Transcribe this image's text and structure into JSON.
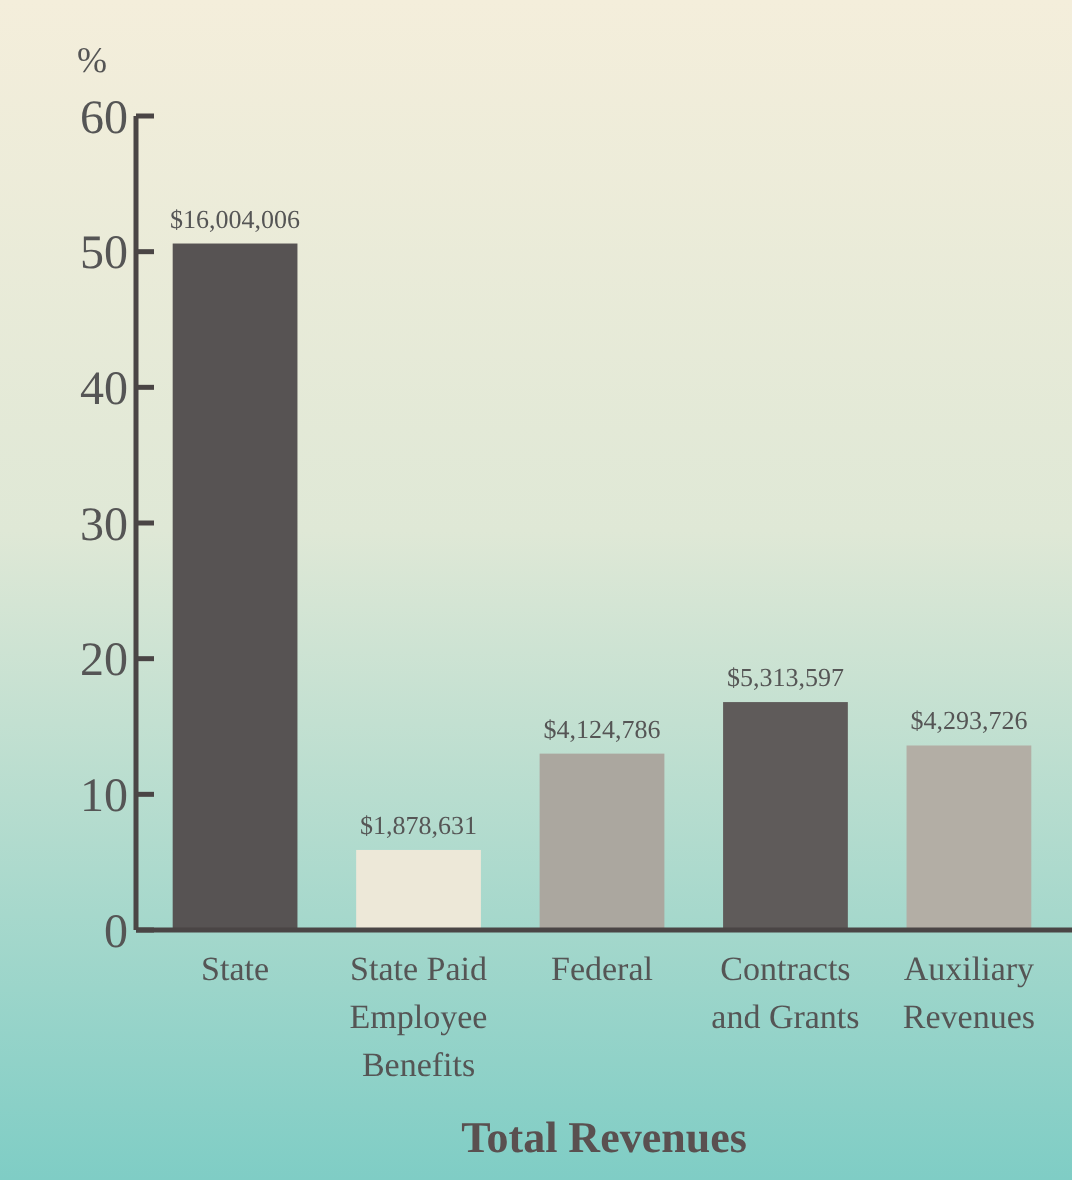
{
  "chart_data": {
    "type": "bar",
    "title": "Total Revenues",
    "ylabel": "%",
    "categories": [
      "State",
      "State Paid Employee Benefits",
      "Federal",
      "Contracts and Grants",
      "Auxiliary Revenues"
    ],
    "values": [
      50.6,
      5.9,
      13.0,
      16.8,
      13.6
    ],
    "colors": [
      "#575353",
      "#ede8d8",
      "#aba79f",
      "#5f5b5a",
      "#b3aea5"
    ],
    "annotations": [
      {
        "text": "$16,004,006",
        "x": "State",
        "y": 50.6
      },
      {
        "text": "$1,878,631",
        "x": "State Paid Employee Benefits",
        "y": 5.9
      },
      {
        "text": "$4,124,786",
        "x": "Federal",
        "y": 13.0
      },
      {
        "text": "$5,313,597",
        "x": "Contracts and Grants",
        "y": 16.8
      },
      {
        "text": "$4,293,726",
        "x": "Auxiliary Revenues",
        "y": 13.6
      }
    ],
    "ylim": [
      0,
      60
    ],
    "yticks": [
      0,
      10,
      20,
      30,
      40,
      50,
      60
    ],
    "grid": false
  }
}
